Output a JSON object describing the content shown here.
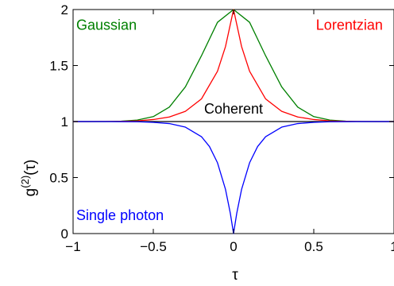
{
  "chart_data": {
    "type": "line",
    "xlabel": "τ",
    "ylabel": "g(2)(τ)",
    "ylabel_main": "g",
    "ylabel_sup": "(2)",
    "ylabel_arg": "(τ)",
    "xlim": [
      -1,
      1
    ],
    "ylim": [
      0,
      2
    ],
    "xticks": [
      -1,
      -0.5,
      0,
      0.5,
      1
    ],
    "xtick_labels": [
      "−1",
      "−0.5",
      "0",
      "0.5",
      "1"
    ],
    "yticks": [
      0,
      0.5,
      1,
      1.5,
      2
    ],
    "ytick_labels": [
      "0",
      "0.5",
      "1",
      "1.5",
      "2"
    ],
    "grid": false,
    "series": [
      {
        "name": "Gaussian",
        "color": "#008000",
        "x": [
          -1,
          -0.9,
          -0.8,
          -0.7,
          -0.6,
          -0.5,
          -0.4,
          -0.3,
          -0.2,
          -0.1,
          0,
          0.1,
          0.2,
          0.3,
          0.4,
          0.5,
          0.6,
          0.7,
          0.8,
          0.9,
          1
        ],
        "y": [
          1.0,
          1.0,
          1.0,
          1.003,
          1.013,
          1.044,
          1.129,
          1.31,
          1.587,
          1.886,
          2.0,
          1.886,
          1.587,
          1.31,
          1.129,
          1.044,
          1.013,
          1.003,
          1.0,
          1.0,
          1.0
        ]
      },
      {
        "name": "Lorentzian",
        "color": "#ff0000",
        "x": [
          -1,
          -0.9,
          -0.8,
          -0.7,
          -0.6,
          -0.5,
          -0.4,
          -0.3,
          -0.2,
          -0.1,
          -0.05,
          0,
          0.05,
          0.1,
          0.2,
          0.3,
          0.4,
          0.5,
          0.6,
          0.7,
          0.8,
          0.9,
          1
        ],
        "y": [
          1.0,
          1.0,
          1.001,
          1.002,
          1.006,
          1.018,
          1.041,
          1.091,
          1.202,
          1.449,
          1.67,
          2.0,
          1.67,
          1.449,
          1.202,
          1.091,
          1.041,
          1.018,
          1.006,
          1.002,
          1.001,
          1.0,
          1.0
        ]
      },
      {
        "name": "Coherent",
        "color": "#000000",
        "x": [
          -1,
          1
        ],
        "y": [
          1,
          1
        ]
      },
      {
        "name": "Single photon",
        "color": "#0000ff",
        "x": [
          -1,
          -0.9,
          -0.8,
          -0.7,
          -0.6,
          -0.5,
          -0.4,
          -0.3,
          -0.2,
          -0.15,
          -0.1,
          -0.05,
          -0.02,
          0,
          0.02,
          0.05,
          0.1,
          0.15,
          0.2,
          0.3,
          0.4,
          0.5,
          0.6,
          0.7,
          0.8,
          0.9,
          1
        ],
        "y": [
          1.0,
          1.0,
          1.0,
          0.999,
          0.998,
          0.993,
          0.982,
          0.95,
          0.865,
          0.777,
          0.632,
          0.394,
          0.181,
          0.0,
          0.181,
          0.394,
          0.632,
          0.777,
          0.865,
          0.95,
          0.982,
          0.993,
          0.998,
          0.999,
          1.0,
          1.0,
          1.0
        ]
      }
    ],
    "annotations": [
      {
        "text": "Gaussian",
        "color": "#008000",
        "anchor_x": -0.98,
        "anchor_y": 1.82,
        "align": "start"
      },
      {
        "text": "Lorentzian",
        "color": "#ff0000",
        "anchor_x": 0.93,
        "anchor_y": 1.82,
        "align": "end"
      },
      {
        "text": "Coherent",
        "color": "#000000",
        "anchor_x": 0.0,
        "anchor_y": 1.07,
        "align": "middle"
      },
      {
        "text": "Single photon",
        "color": "#0000ff",
        "anchor_x": -0.98,
        "anchor_y": 0.12,
        "align": "start"
      }
    ]
  }
}
